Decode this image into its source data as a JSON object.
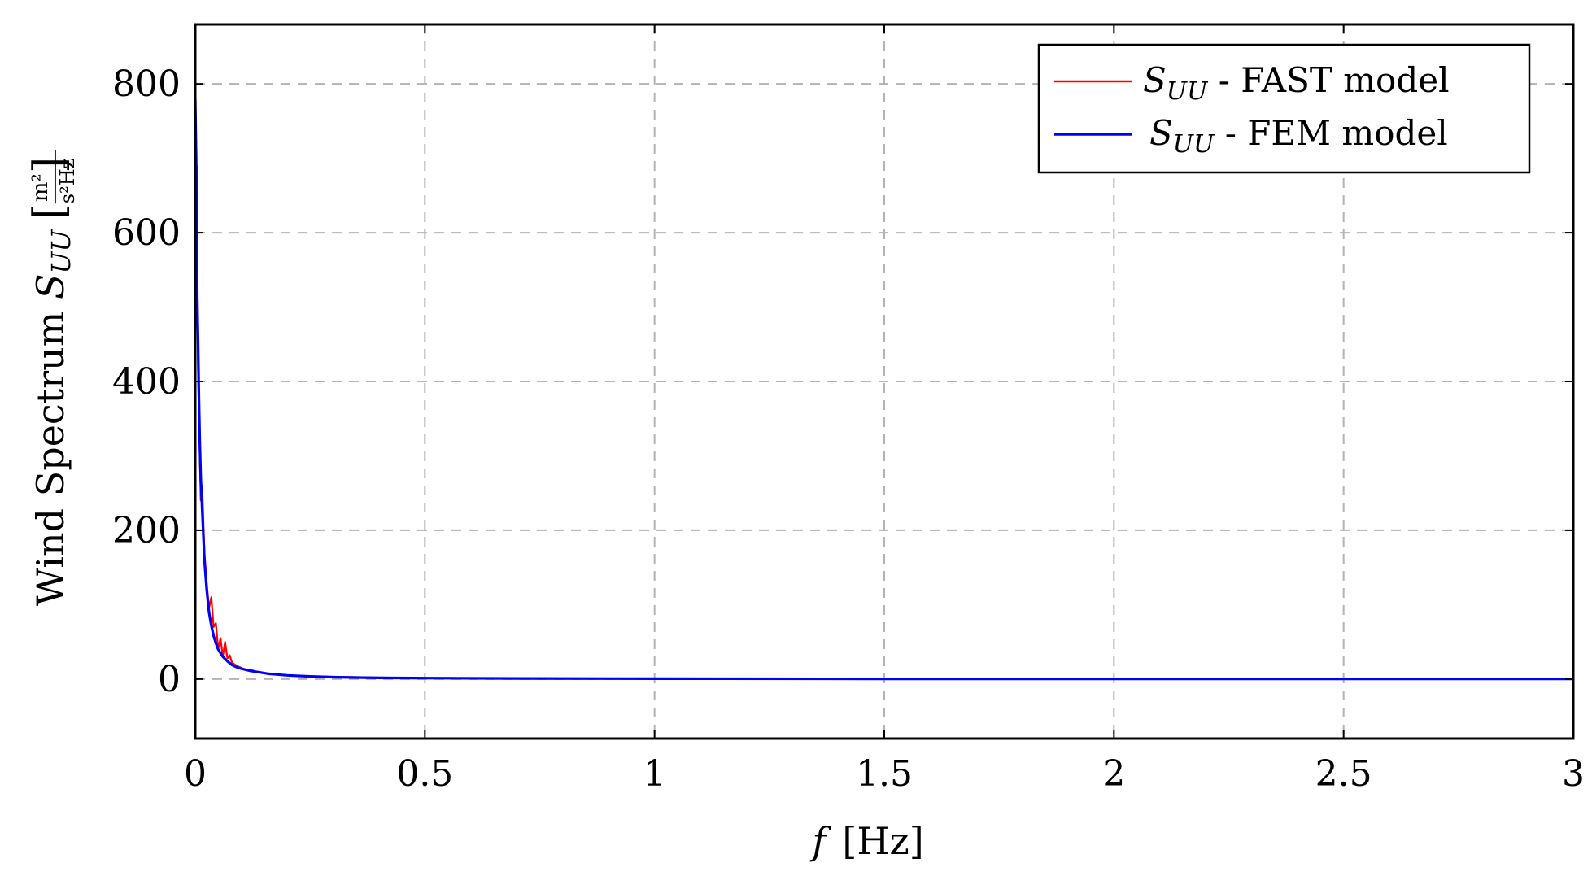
{
  "chart_data": {
    "type": "line",
    "xlabel": "f [Hz]",
    "ylabel": "Wind Spectrum S_UU [m²/(s²Hz)]",
    "xlabel_parts": {
      "var": "f",
      "unit": "[Hz]"
    },
    "ylabel_parts": {
      "text": "Wind Spectrum ",
      "sym": "S",
      "sub": "UU",
      "unit_num": "m²",
      "unit_den": "s²Hz"
    },
    "xlim": [
      0,
      3
    ],
    "ylim": [
      -80,
      880
    ],
    "x_ticks": [
      0,
      0.5,
      1,
      1.5,
      2,
      2.5,
      3
    ],
    "x_tick_labels": [
      "0",
      "0.5",
      "1",
      "1.5",
      "2",
      "2.5",
      "3"
    ],
    "y_ticks": [
      0,
      200,
      400,
      600,
      800
    ],
    "y_tick_labels": [
      "0",
      "200",
      "400",
      "600",
      "800"
    ],
    "grid": true,
    "legend_position": "top-right",
    "series": [
      {
        "name": "S_UU - FAST model",
        "legend": {
          "sym": "S",
          "sub": "UU",
          "text": " - FAST model"
        },
        "color": "#ff0000",
        "x": [
          0.0,
          0.002,
          0.004,
          0.006,
          0.008,
          0.01,
          0.012,
          0.015,
          0.02,
          0.025,
          0.03,
          0.035,
          0.04,
          0.045,
          0.05,
          0.055,
          0.06,
          0.065,
          0.07,
          0.075,
          0.08,
          0.09,
          0.1,
          0.11,
          0.12,
          0.13,
          0.14,
          0.16,
          0.18,
          0.2,
          0.25,
          0.3,
          0.35,
          0.4,
          0.5,
          0.7,
          1.0,
          1.5,
          2.0,
          2.17
        ],
        "y": [
          800,
          560,
          690,
          420,
          360,
          300,
          240,
          260,
          170,
          130,
          95,
          110,
          70,
          75,
          40,
          55,
          30,
          50,
          28,
          32,
          22,
          18,
          15,
          12,
          13,
          10,
          9,
          7,
          6,
          5,
          4,
          3,
          2.5,
          2,
          1.5,
          1,
          0.6,
          0.4,
          0.3,
          0.2
        ]
      },
      {
        "name": "S_UU - FEM model",
        "legend": {
          "sym": "S",
          "sub": "UU",
          "text": " - FEM model"
        },
        "color": "#0000ff",
        "x": [
          0.0,
          0.002,
          0.004,
          0.006,
          0.008,
          0.01,
          0.012,
          0.015,
          0.02,
          0.025,
          0.03,
          0.035,
          0.04,
          0.045,
          0.05,
          0.06,
          0.07,
          0.08,
          0.09,
          0.1,
          0.12,
          0.14,
          0.16,
          0.18,
          0.2,
          0.25,
          0.3,
          0.35,
          0.4,
          0.5,
          0.7,
          1.0,
          1.5,
          2.0,
          2.5,
          3.0
        ],
        "y": [
          780,
          700,
          520,
          460,
          380,
          320,
          270,
          230,
          160,
          120,
          90,
          72,
          58,
          48,
          40,
          30,
          24,
          19,
          16,
          14,
          11,
          9,
          7,
          6,
          5,
          3.5,
          2.5,
          2,
          1.6,
          1.2,
          0.8,
          0.5,
          0.3,
          0.2,
          0.15,
          0.1
        ]
      }
    ]
  }
}
